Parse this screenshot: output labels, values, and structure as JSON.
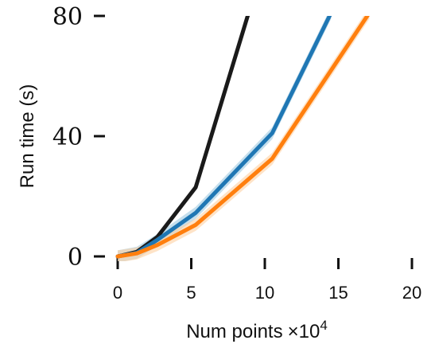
{
  "chart_data": {
    "type": "line",
    "xlabel": "Num points",
    "xlabel_multiplier": "×10",
    "xlabel_exponent": "4",
    "ylabel": "Run time (s)",
    "xlim": [
      0,
      20
    ],
    "ylim": [
      0,
      80
    ],
    "xticks": [
      0,
      5,
      10,
      15,
      20
    ],
    "yticks": [
      0,
      40,
      80
    ],
    "xtick_labels": [
      "0",
      "5",
      "10",
      "15",
      "20"
    ],
    "ytick_labels": [
      "0",
      "40",
      "80"
    ],
    "grid": false,
    "legend": "none",
    "series": [
      {
        "color": "#1a1a1a",
        "x": [
          0,
          1.3,
          2.7,
          5.3,
          8.9
        ],
        "y": [
          0,
          1.5,
          6.5,
          23,
          81
        ]
      },
      {
        "color": "#1f77b4",
        "band_color": "#9ecae1",
        "x": [
          0,
          1.3,
          2.7,
          5.3,
          10.5,
          14.5
        ],
        "y": [
          0,
          1.2,
          5.5,
          14.5,
          41,
          81
        ],
        "band": 2
      },
      {
        "color": "#ff7f0e",
        "band_color": "#fdd0a2",
        "x": [
          0,
          1.3,
          2.7,
          5.3,
          10.5,
          17.1
        ],
        "y": [
          0,
          1.0,
          3.8,
          10.5,
          32.5,
          81
        ],
        "band": 2
      }
    ]
  }
}
